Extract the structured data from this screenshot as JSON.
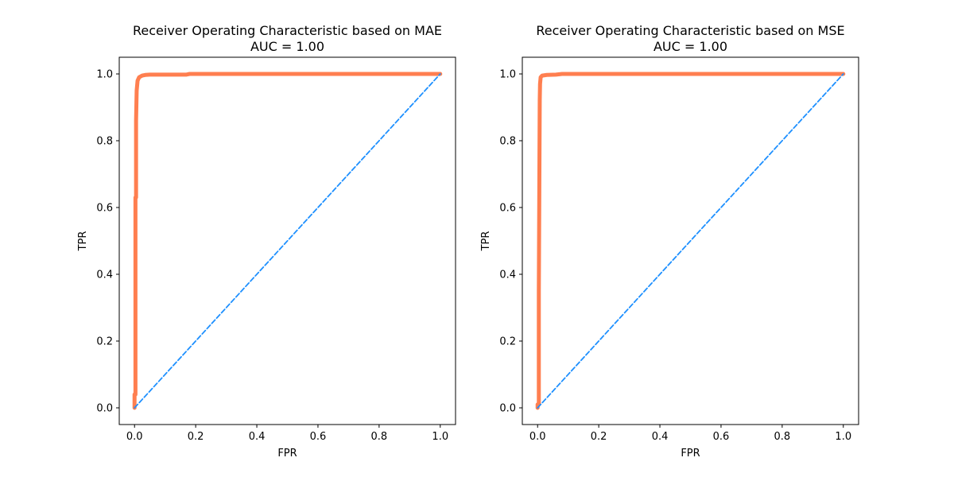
{
  "chart_data": [
    {
      "type": "line",
      "title": "Receiver Operating Characteristic based on MAE",
      "subtitle": "AUC = 1.00",
      "xlabel": "FPR",
      "ylabel": "TPR",
      "xlim": [
        -0.05,
        1.05
      ],
      "ylim": [
        -0.05,
        1.05
      ],
      "xticks": [
        0.0,
        0.2,
        0.4,
        0.6,
        0.8,
        1.0
      ],
      "yticks": [
        0.0,
        0.2,
        0.4,
        0.6,
        0.8,
        1.0
      ],
      "grid": false,
      "series": [
        {
          "color": "#ff7f50",
          "x": [
            0.0,
            0.0,
            0.003,
            0.003,
            0.005,
            0.005,
            0.007,
            0.01,
            0.015,
            0.025,
            0.035,
            0.05,
            0.1,
            0.17,
            0.18,
            0.3,
            0.5,
            0.7,
            1.0
          ],
          "y": [
            0.0,
            0.04,
            0.04,
            0.63,
            0.63,
            0.86,
            0.95,
            0.98,
            0.99,
            0.995,
            0.997,
            0.998,
            0.998,
            0.998,
            1.0,
            1.0,
            1.0,
            1.0,
            1.0
          ]
        },
        {
          "color": "#1e90ff",
          "dash": "dashed",
          "x": [
            0.0,
            1.0
          ],
          "y": [
            0.0,
            1.0
          ]
        }
      ]
    },
    {
      "type": "line",
      "title": "Receiver Operating Characteristic based on MSE",
      "subtitle": "AUC = 1.00",
      "xlabel": "FPR",
      "ylabel": "TPR",
      "xlim": [
        -0.05,
        1.05
      ],
      "ylim": [
        -0.05,
        1.05
      ],
      "xticks": [
        0.0,
        0.2,
        0.4,
        0.6,
        0.8,
        1.0
      ],
      "yticks": [
        0.0,
        0.2,
        0.4,
        0.6,
        0.8,
        1.0
      ],
      "grid": false,
      "series": [
        {
          "color": "#ff7f50",
          "x": [
            0.0,
            0.0,
            0.004,
            0.004,
            0.007,
            0.008,
            0.01,
            0.015,
            0.03,
            0.06,
            0.08,
            0.5,
            1.0
          ],
          "y": [
            0.0,
            0.01,
            0.01,
            0.35,
            0.92,
            0.97,
            0.99,
            0.995,
            0.997,
            0.998,
            1.0,
            1.0,
            1.0
          ]
        },
        {
          "color": "#1e90ff",
          "dash": "dashed",
          "x": [
            0.0,
            1.0
          ],
          "y": [
            0.0,
            1.0
          ]
        }
      ]
    }
  ]
}
